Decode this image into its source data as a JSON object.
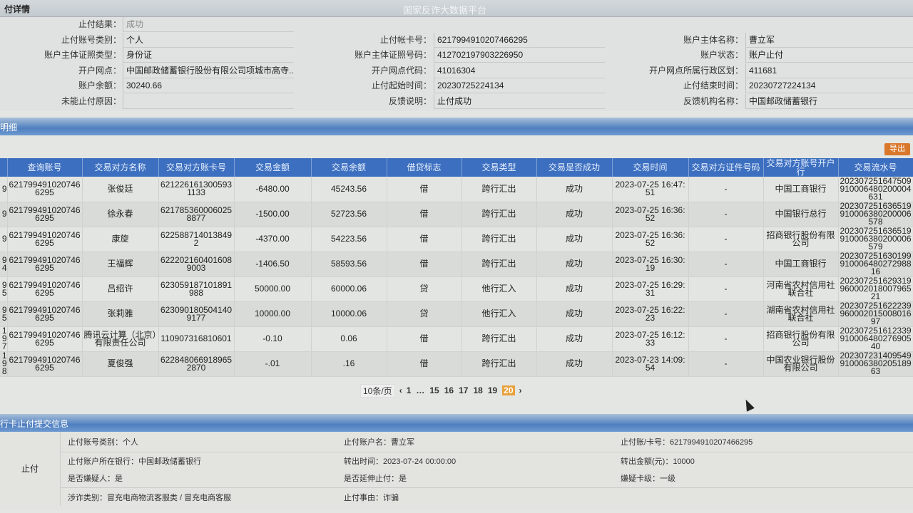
{
  "header": {
    "section_title": "付详情",
    "platform_title": "国家反诈大数据平台"
  },
  "info": {
    "col1": [
      {
        "label": "止付结果：",
        "value": "成功"
      },
      {
        "label": "止付账号类别：",
        "value": "个人"
      },
      {
        "label": "账户主体证照类型：",
        "value": "身份证"
      },
      {
        "label": "开户网点：",
        "value": "中国邮政储蓄银行股份有限公司项城市高寺..."
      },
      {
        "label": "账户余额：",
        "value": "30240.66"
      },
      {
        "label": "未能止付原因：",
        "value": ""
      }
    ],
    "col2": [
      {
        "label": "止付帐卡号：",
        "value": "6217994910207466295"
      },
      {
        "label": "账户主体证照号码：",
        "value": "412702197903226950"
      },
      {
        "label": "开户网点代码：",
        "value": "41016304"
      },
      {
        "label": "止付起始时间：",
        "value": "20230725224134"
      },
      {
        "label": "反馈说明：",
        "value": "止付成功"
      }
    ],
    "col3": [
      {
        "label": "账户主体名称：",
        "value": "曹立军"
      },
      {
        "label": "账户状态：",
        "value": "账户止付"
      },
      {
        "label": "开户网点所属行政区划：",
        "value": "411681"
      },
      {
        "label": "止付结束时间：",
        "value": "20230727224134"
      },
      {
        "label": "反馈机构名称：",
        "value": "中国邮政储蓄银行"
      }
    ]
  },
  "detail": {
    "section_title": "明细",
    "export_label": "导出"
  },
  "table": {
    "headers": [
      "",
      "查询账号",
      "交易对方名称",
      "交易对方账卡号",
      "交易金额",
      "交易余额",
      "借贷标志",
      "交易类型",
      "交易是否成功",
      "交易时间",
      "交易对方证件号码",
      "交易对方账号开户行",
      "交易流水号"
    ],
    "rows": [
      [
        "9",
        "6217994910207466295",
        "张俊廷",
        "6212261613005931133",
        "-6480.00",
        "45243.56",
        "借",
        "跨行汇出",
        "成功",
        "2023-07-25 16:47:51",
        "-",
        "中国工商银行",
        "202307251647509910006480200004631"
      ],
      [
        "9",
        "6217994910207466295",
        "徐永春",
        "6217853600060258877",
        "-1500.00",
        "52723.56",
        "借",
        "跨行汇出",
        "成功",
        "2023-07-25 16:36:52",
        "-",
        "中国银行总行",
        "202307251636519910006380200006578"
      ],
      [
        "9",
        "6217994910207466295",
        "康旋",
        "622588714013849 2",
        "-4370.00",
        "54223.56",
        "借",
        "跨行汇出",
        "成功",
        "2023-07-25 16:36:52",
        "-",
        "招商银行股份有限公司",
        "202307251636519910006380200006579"
      ],
      [
        "9 4",
        "6217994910207466295",
        "王福辉",
        "6222021604016089003",
        "-1406.50",
        "58593.56",
        "借",
        "跨行汇出",
        "成功",
        "2023-07-25 16:30:19",
        "-",
        "中国工商银行",
        "202307251630199910006480272988 16"
      ],
      [
        "9 5",
        "6217994910207466295",
        "吕绍许",
        "623059187101891988",
        "50000.00",
        "60000.06",
        "贷",
        "他行汇入",
        "成功",
        "2023-07-25 16:29:31",
        "-",
        "河南省农村信用社联合社",
        "202307251629319960002018007965 21"
      ],
      [
        "9 5",
        "6217994910207466295",
        "张莉雅",
        "6230901805041409177",
        "10000.00",
        "10000.06",
        "贷",
        "他行汇入",
        "成功",
        "2023-07-25 16:22:23",
        "-",
        "湖南省农村信用社联合社",
        "202307251622239960002015008016 97"
      ],
      [
        "19 7",
        "6217994910207466295",
        "腾讯云计算（北京）有限责任公司",
        "110907316810601",
        "-0.10",
        "0.06",
        "借",
        "跨行汇出",
        "成功",
        "2023-07-25 16:12:33",
        "-",
        "招商银行股份有限公司",
        "202307251612339910006480276905 40"
      ],
      [
        "19 8",
        "6217994910207466295",
        "夏俊强",
        "6228480669189652870",
        "-.01",
        ".16",
        "借",
        "跨行汇出",
        "成功",
        "2023-07-23 14:09:54",
        "-",
        "中国农业银行股份有限公司",
        "202307231409549910006380205189 63"
      ]
    ]
  },
  "pagination": {
    "page_size": "10条/页",
    "pages": [
      "1",
      "…",
      "15",
      "16",
      "17",
      "18",
      "19",
      "20"
    ],
    "current": "20",
    "prev_icon": "chevron-left",
    "next_icon": "chevron-right"
  },
  "submit": {
    "section_title": "行卡止付提交信息",
    "row_label": "止付",
    "items": [
      "止付账号类别：个人",
      "止付账户名：曹立军",
      "止付账/卡号：6217994910207466295",
      "止付账户所在银行：中国邮政储蓄银行",
      "转出时间：2023-07-24 00:00:00",
      "转出金额(元)：10000",
      "是否嫌疑人：是",
      "是否延伸止付：是",
      "嫌疑卡级：一级",
      "涉诈类别：冒充电商物流客服类 / 冒充电商客服",
      "止付事由：诈骗"
    ]
  },
  "colors": {
    "header_blue": "#3c6fbf",
    "export_orange": "#d9772a",
    "current_page": "#e8a23c"
  }
}
